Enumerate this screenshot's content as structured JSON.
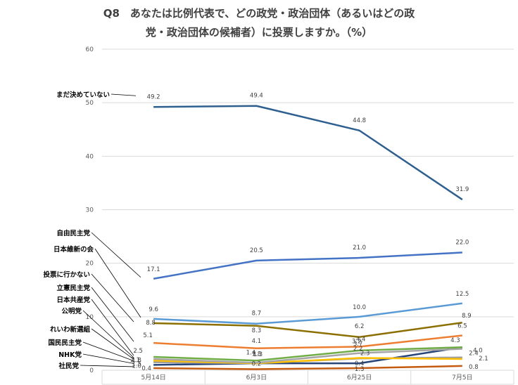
{
  "chart_data": {
    "type": "line",
    "title": [
      "Q8　あなたは比例代表で、どの政党・政治団体（あるいはどの政",
      "党・政治団体の候補者）に投票しますか。（%）"
    ],
    "categories": [
      "5月14日",
      "6月3日",
      "6月25日",
      "7月5日"
    ],
    "ylim": [
      0,
      60
    ],
    "yticks": [
      0,
      10,
      20,
      30,
      40,
      50,
      60
    ],
    "grid": true,
    "legend": "inline labels at left",
    "series": [
      {
        "name": "まだ決めていない",
        "values": [
          49.2,
          49.4,
          44.8,
          31.9
        ],
        "labels": [
          "49.2",
          "49.4",
          "44.8",
          "31.9"
        ],
        "color": "#2E5F8F"
      },
      {
        "name": "自由民主党",
        "values": [
          17.1,
          20.5,
          21.0,
          22.0
        ],
        "labels": [
          "17.1",
          "20.5",
          "21.0",
          "22.0"
        ],
        "color": "#4472C4"
      },
      {
        "name": "日本維新の会",
        "values": [
          9.6,
          8.7,
          10.0,
          12.5
        ],
        "labels": [
          "9.6",
          "8.7",
          "10.0",
          "12.5"
        ],
        "color": "#5B9BD5"
      },
      {
        "name": "投票に行かない",
        "values": [
          8.8,
          8.3,
          6.2,
          8.9
        ],
        "labels": [
          "8.8",
          "8.3",
          "6.2",
          "8.9"
        ],
        "color": "#8B6F00"
      },
      {
        "name": "立憲民主党",
        "values": [
          5.1,
          4.1,
          4.4,
          6.5
        ],
        "labels": [
          "5.1",
          "4.1",
          "4.4",
          "6.5"
        ],
        "color": "#ED7D31"
      },
      {
        "name": "日本共産党",
        "values": [
          2.5,
          1.8,
          3.7,
          4.3
        ],
        "labels": [
          "2.5",
          "1.8",
          "3.7",
          "4.3"
        ],
        "color": "#70AD47"
      },
      {
        "name": "公明党",
        "values": [
          2.1,
          1.4,
          3.2,
          4.0
        ],
        "labels": [
          "2.1",
          "1.4",
          "3.2",
          "4.0"
        ],
        "color": "#A5A5A5"
      },
      {
        "name": "れいわ新選組",
        "values": [
          1.8,
          1.3,
          2.3,
          2.1
        ],
        "labels": [
          "1.8",
          "1.3",
          "2.3",
          "2.1"
        ],
        "color": "#FFC000"
      },
      {
        "name": "国民民主党",
        "values": [
          1.5,
          1.3,
          2.2,
          2.4
        ],
        "labels": [
          "1.5",
          "",
          "2.2",
          "2.4"
        ],
        "color": "#9E9E9E"
      },
      {
        "name": "NHK党",
        "values": [
          1.0,
          1.3,
          1.3,
          4.3
        ],
        "labels": [
          "1.0",
          "",
          "1.3",
          ""
        ],
        "color": "#264478"
      },
      {
        "name": "社民党",
        "values": [
          0.4,
          0.2,
          0.4,
          0.8
        ],
        "labels": [
          "0.4",
          "0.2",
          "0.4",
          "0.8"
        ],
        "color": "#C55A11"
      }
    ]
  }
}
